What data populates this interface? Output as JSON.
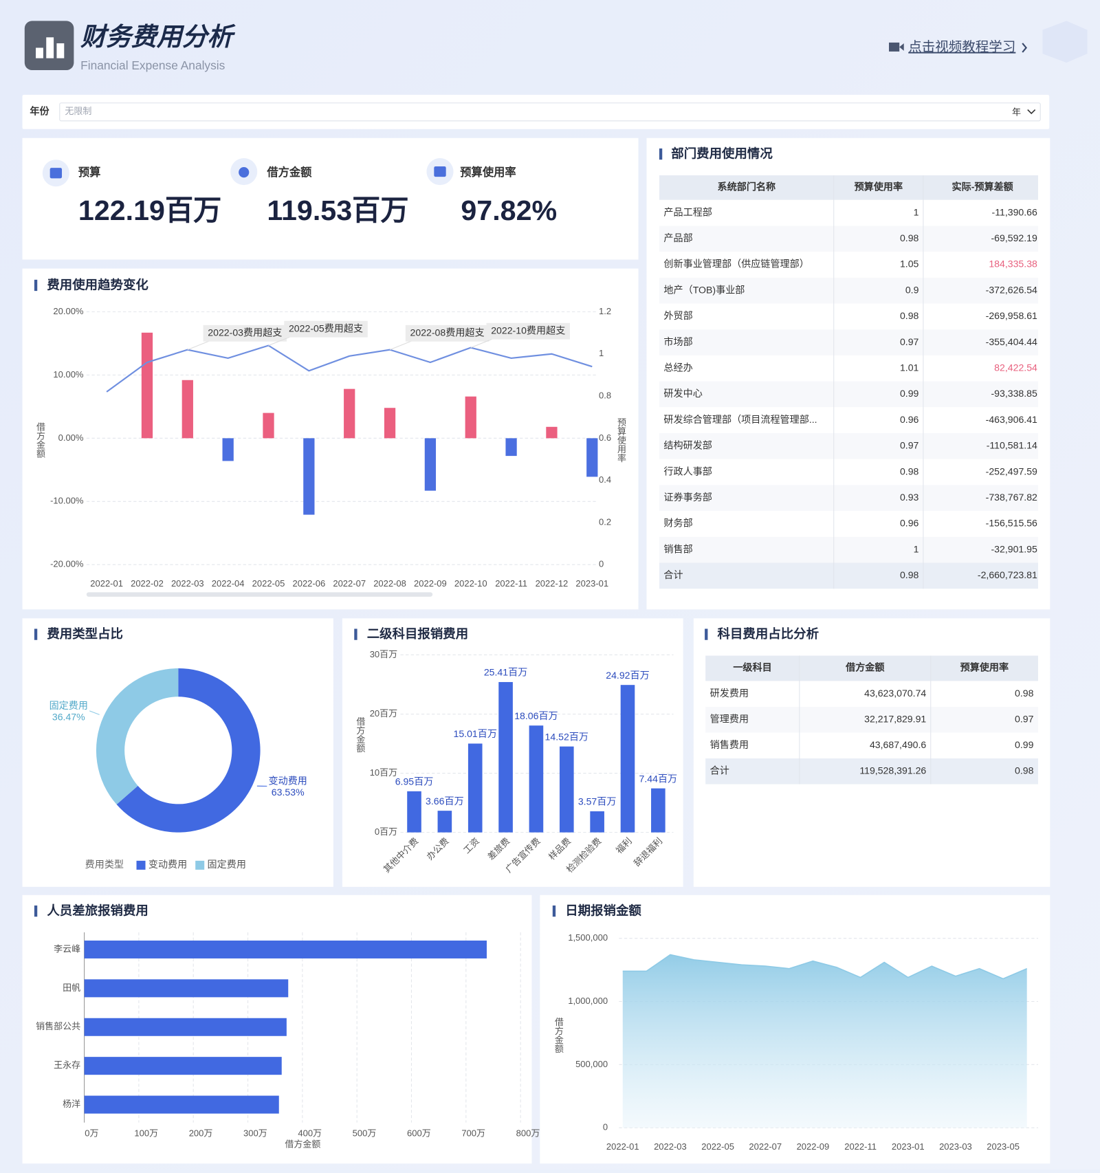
{
  "header": {
    "title": "财务费用分析",
    "subtitle": "Financial Expense Analysis",
    "link": "点击视频教程学习"
  },
  "filter": {
    "label": "年份",
    "placeholder": "无限制",
    "unit": "年"
  },
  "kpis": [
    {
      "label": "预算",
      "value": "122.19百万"
    },
    {
      "label": "借方金额",
      "value": "119.53百万"
    },
    {
      "label": "预算使用率",
      "value": "97.82%"
    }
  ],
  "dept_table": {
    "title": "部门费用使用情况",
    "columns": [
      "系统部门名称",
      "预算使用率",
      "实际-预算差额"
    ],
    "rows": [
      [
        "产品工程部",
        "1",
        "-11,390.66"
      ],
      [
        "产品部",
        "0.98",
        "-69,592.19"
      ],
      [
        "创新事业管理部（供应链管理部）",
        "1.05",
        "184,335.38"
      ],
      [
        "地产（TOB)事业部",
        "0.9",
        "-372,626.54"
      ],
      [
        "外贸部",
        "0.98",
        "-269,958.61"
      ],
      [
        "市场部",
        "0.97",
        "-355,404.44"
      ],
      [
        "总经办",
        "1.01",
        "82,422.54"
      ],
      [
        "研发中心",
        "0.99",
        "-93,338.85"
      ],
      [
        "研发综合管理部（项目流程管理部...",
        "0.96",
        "-463,906.41"
      ],
      [
        "结构研发部",
        "0.97",
        "-110,581.14"
      ],
      [
        "行政人事部",
        "0.98",
        "-252,497.59"
      ],
      [
        "证券事务部",
        "0.93",
        "-738,767.82"
      ],
      [
        "财务部",
        "0.96",
        "-156,515.56"
      ],
      [
        "销售部",
        "1",
        "-32,901.95"
      ],
      [
        "合计",
        "0.98",
        "-2,660,723.81"
      ]
    ]
  },
  "subject_table": {
    "title": "科目费用占比分析",
    "columns": [
      "一级科目",
      "借方金额",
      "预算使用率"
    ],
    "rows": [
      [
        "研发费用",
        "43,623,070.74",
        "0.98"
      ],
      [
        "管理费用",
        "32,217,829.91",
        "0.97"
      ],
      [
        "销售费用",
        "43,687,490.6",
        "0.99"
      ],
      [
        "合计",
        "119,528,391.26",
        "0.98"
      ]
    ]
  },
  "chart_data": [
    {
      "type": "combo",
      "title": "费用使用趋势变化",
      "categories": [
        "2022-01",
        "2022-02",
        "2022-03",
        "2022-04",
        "2022-05",
        "2022-06",
        "2022-07",
        "2022-08",
        "2022-09",
        "2022-10",
        "2022-11",
        "2022-12",
        "2023-01"
      ],
      "series": [
        {
          "name": "借方金额",
          "color": "#4b6fe0",
          "positive_color": "#eb5f7f",
          "values": [
            null,
            16.7,
            9.2,
            -3.6,
            4,
            -12.1,
            7.8,
            4.8,
            -8.3,
            6.6,
            -2.8,
            1.8,
            -6.1
          ]
        },
        {
          "name": "预算使用率",
          "axis": "y2",
          "color": "#6f8fe0",
          "values": [
            0.82,
            0.96,
            1.02,
            0.98,
            1.04,
            0.92,
            0.99,
            1.02,
            0.96,
            1.03,
            0.98,
            1.0,
            0.94
          ]
        }
      ],
      "ylim": [
        -20,
        20
      ],
      "yticks": [
        {
          "value": -20,
          "label": "-20.00%"
        },
        {
          "value": -10,
          "label": "-10.00%"
        },
        {
          "value": 0,
          "label": "0.00%"
        },
        {
          "value": 10,
          "label": "10.00%"
        },
        {
          "value": 20,
          "label": "20.00%"
        }
      ],
      "y2lim": [
        0,
        1.2
      ],
      "y2ticks": [
        0,
        0.2,
        0.4,
        0.6,
        0.8,
        1,
        1.2
      ],
      "grid": true,
      "annotations": [
        {
          "x": "2022-03",
          "text": "2022-03费用超支"
        },
        {
          "x": "2022-05",
          "text": "2022-05费用超支"
        },
        {
          "x": "2022-08",
          "text": "2022-08费用超支"
        },
        {
          "x": "2022-10",
          "text": "2022-10费用超支"
        }
      ]
    },
    {
      "type": "pie",
      "title": "费用类型占比",
      "categories": [
        "变动费用",
        "固定费用"
      ],
      "values": [
        63.53,
        36.47
      ],
      "value_labels": [
        "63.53%",
        "36.47%"
      ],
      "colors": [
        "#4169e1",
        "#8ecae6"
      ],
      "legend_title": "费用类型",
      "donut": true
    },
    {
      "type": "bar",
      "title": "二级科目报销费用",
      "categories": [
        "其他中介费",
        "办公费",
        "工资",
        "差旅费",
        "广告宣传费",
        "样品费",
        "检测检验费",
        "福利",
        "辞退福利"
      ],
      "values": [
        6.95,
        3.66,
        15.01,
        25.41,
        18.06,
        14.52,
        3.57,
        24.92,
        7.44
      ],
      "value_labels": [
        "6.95百万",
        "3.66百万",
        "15.01百万",
        "25.41百万",
        "18.06百万",
        "14.52百万",
        "3.57百万",
        "24.92百万",
        "7.44百万"
      ],
      "color": "#4169e1",
      "ylim": [
        0,
        30
      ],
      "yticks": [
        {
          "value": 0,
          "label": "0百万"
        },
        {
          "value": 10,
          "label": "10百万"
        },
        {
          "value": 20,
          "label": "20百万"
        },
        {
          "value": 30,
          "label": "30百万"
        }
      ],
      "y_label": "借方金额",
      "grid": true
    },
    {
      "type": "hbar",
      "title": "人员差旅报销费用",
      "categories": [
        "李云峰",
        "田帆",
        "销售部公共",
        "王永存",
        "杨洋"
      ],
      "values": [
        738,
        374,
        371,
        362,
        357
      ],
      "color": "#4169e1",
      "xlim": [
        0,
        800
      ],
      "xticks": [
        {
          "value": 0,
          "label": "0万"
        },
        {
          "value": 100,
          "label": "100万"
        },
        {
          "value": 200,
          "label": "200万"
        },
        {
          "value": 300,
          "label": "300万"
        },
        {
          "value": 400,
          "label": "400万"
        },
        {
          "value": 500,
          "label": "500万"
        },
        {
          "value": 600,
          "label": "600万"
        },
        {
          "value": 700,
          "label": "700万"
        },
        {
          "value": 800,
          "label": "800万"
        }
      ],
      "x_label": "借方金额",
      "grid": true
    },
    {
      "type": "area",
      "title": "日期报销金额",
      "x": [
        "2022-01",
        null,
        "2022-03",
        null,
        "2022-05",
        null,
        "2022-07",
        null,
        "2022-09",
        null,
        "2022-11",
        null,
        "2023-01",
        null,
        "2023-03",
        null,
        "2023-05",
        null
      ],
      "values": [
        1240000,
        1240000,
        1370000,
        1330000,
        1310000,
        1290000,
        1280000,
        1260000,
        1320000,
        1270000,
        1190000,
        1310000,
        1190000,
        1280000,
        1200000,
        1260000,
        1180000,
        1260000
      ],
      "color": "#8ecae6",
      "ylim": [
        0,
        1500000
      ],
      "yticks": [
        0,
        {
          "value": 500000,
          "label": "500,000"
        },
        {
          "value": 1000000,
          "label": "1,000,000"
        },
        {
          "value": 1500000,
          "label": "1,500,000"
        }
      ],
      "y_label": "借方金额",
      "grid": true
    }
  ]
}
